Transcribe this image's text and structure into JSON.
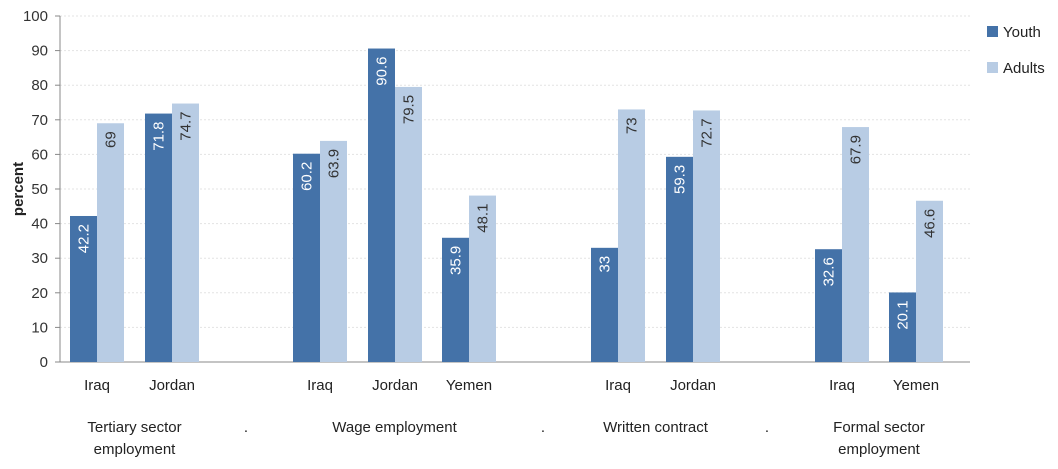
{
  "chart_data": {
    "type": "bar",
    "ylabel": "percent",
    "ylim": [
      0,
      100
    ],
    "yticks": [
      0,
      10,
      20,
      30,
      40,
      50,
      60,
      70,
      80,
      90,
      100
    ],
    "grid": true,
    "legend_position": "top-right",
    "series": [
      {
        "name": "Youth",
        "color": "#4472a8"
      },
      {
        "name": "Adults",
        "color": "#b8cce4"
      }
    ],
    "groups": [
      {
        "label": "Tertiary sector\nemployment",
        "categories": [
          {
            "name": "Iraq",
            "values": [
              42.2,
              69
            ],
            "labels": [
              "42.2",
              "69"
            ]
          },
          {
            "name": "Jordan",
            "values": [
              71.8,
              74.7
            ],
            "labels": [
              "71.8",
              "74.7"
            ]
          }
        ]
      },
      {
        "label": "Wage employment",
        "categories": [
          {
            "name": "Iraq",
            "values": [
              60.2,
              63.9
            ],
            "labels": [
              "60.2",
              "63.9"
            ]
          },
          {
            "name": "Jordan",
            "values": [
              90.6,
              79.5
            ],
            "labels": [
              "90.6",
              "79.5"
            ]
          },
          {
            "name": "Yemen",
            "values": [
              35.9,
              48.1
            ],
            "labels": [
              "35.9",
              "48.1"
            ]
          }
        ]
      },
      {
        "label": "Written contract",
        "categories": [
          {
            "name": "Iraq",
            "values": [
              33,
              73
            ],
            "labels": [
              "33",
              "73"
            ]
          },
          {
            "name": "Jordan",
            "values": [
              59.3,
              72.7
            ],
            "labels": [
              "59.3",
              "72.7"
            ]
          }
        ]
      },
      {
        "label": "Formal sector\nemployment",
        "categories": [
          {
            "name": "Iraq",
            "values": [
              32.6,
              67.9
            ],
            "labels": [
              "32.6",
              "67.9"
            ]
          },
          {
            "name": "Yemen",
            "values": [
              20.1,
              46.6
            ],
            "labels": [
              "20.1",
              "46.6"
            ]
          }
        ]
      }
    ],
    "separator_label": "."
  }
}
